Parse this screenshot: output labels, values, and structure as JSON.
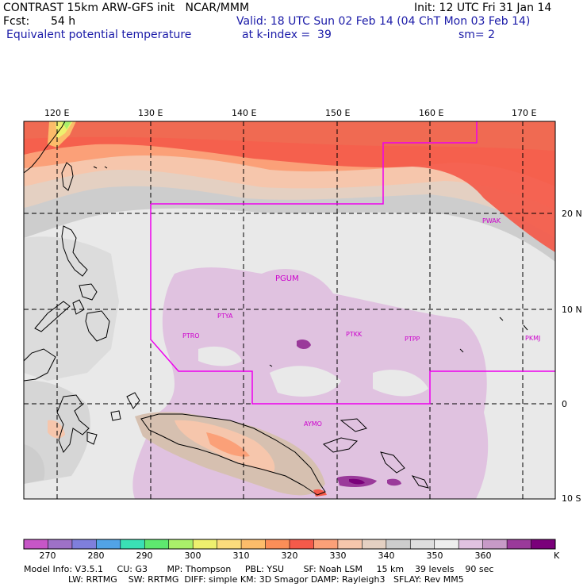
{
  "header": {
    "line1_left": "CONTRAST 15km ARW-GFS init   NCAR/MMM",
    "line1_right": "Init: 12 UTC Fri 31 Jan 14",
    "fcst_label": "Fcst:",
    "fcst_value": "54 h",
    "valid": "Valid: 18 UTC Sun 02 Feb 14 (04 ChT Mon 03 Feb 14)",
    "field_name": "Equivalent potential temperature",
    "level": "at k-index =  39",
    "smoothing": "sm= 2"
  },
  "map": {
    "lon_labels": [
      "120 E",
      "130 E",
      "140 E",
      "150 E",
      "160 E",
      "170 E"
    ],
    "lat_labels": [
      "20 N",
      "10 N",
      "0",
      "10 S"
    ],
    "stations": [
      "PWAK",
      "PGUM",
      "PTYA",
      "PTRO",
      "PTKK",
      "PTPP",
      "PKMJ",
      "AYMO"
    ]
  },
  "colorbar": {
    "unit": "K",
    "tick_labels": [
      "270",
      "280",
      "290",
      "300",
      "310",
      "320",
      "330",
      "340",
      "350",
      "360"
    ],
    "colors": [
      "#c756c7",
      "#9e71c7",
      "#7f7fdc",
      "#52a3e6",
      "#3ae0b5",
      "#5ee86f",
      "#aaf06a",
      "#eef06e",
      "#fcdc7c",
      "#fcbc6a",
      "#fb8e58",
      "#f45a4a",
      "#fba078",
      "#f6c6ac",
      "#e4d0c2",
      "#cdcdcd",
      "#dedede",
      "#eeeeee",
      "#e0c2e0",
      "#c79ac7",
      "#9a3a9a",
      "#7a007a"
    ]
  },
  "footer": {
    "line1": "Model Info: V3.5.1     CU: G3       MP: Thompson     PBL: YSU       SF: Noah LSM     15 km    39 levels    90 sec",
    "line2": "                LW: RRTMG    SW: RRTMG  DIFF: simple KM: 3D Smagor DAMP: Rayleigh3   SFLAY: Rev MM5"
  }
}
